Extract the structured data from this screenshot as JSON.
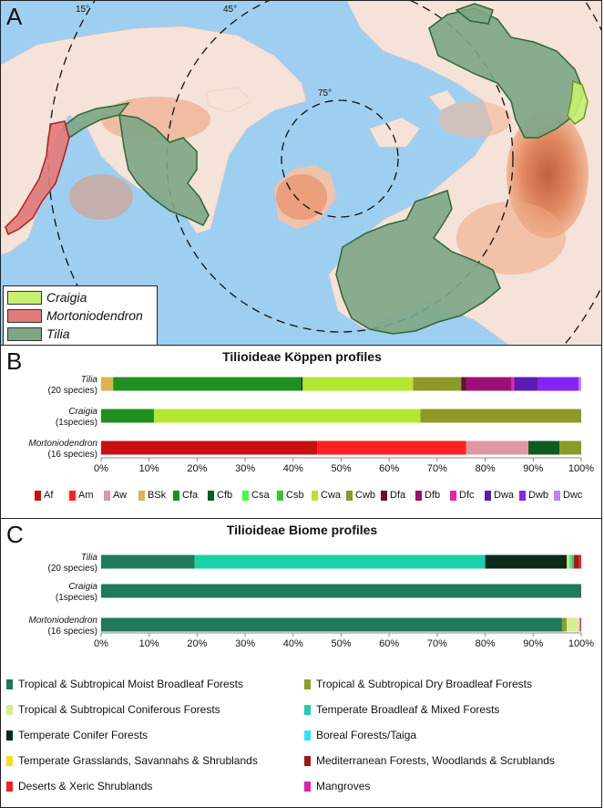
{
  "panel_a": {
    "letter": "A",
    "latitude_labels": [
      "15°",
      "45°",
      "75°"
    ],
    "legend": [
      {
        "name": "Craigia",
        "color": "#c8f06e"
      },
      {
        "name": "Mortoniodendron",
        "color": "#e47a78"
      },
      {
        "name": "Tilia",
        "color": "#7ea686"
      }
    ],
    "colors": {
      "ocean": "#9fcff0",
      "land": "#f5e2d8",
      "relief": "#d87040"
    }
  },
  "chart_data": [
    {
      "type": "bar",
      "orientation": "horizontal-stacked-100",
      "letter": "B",
      "title": "Tilioideae Köppen profiles",
      "categories": [
        {
          "name": "Tilia",
          "note": "(20 species)"
        },
        {
          "name": "Craigia",
          "note": "(1species)"
        },
        {
          "name": "Mortoniodendron",
          "note": "(16 species)"
        }
      ],
      "xlim": [
        0,
        100
      ],
      "xticks": [
        "0%",
        "10%",
        "20%",
        "30%",
        "40%",
        "50%",
        "60%",
        "70%",
        "80%",
        "90%",
        "100%"
      ],
      "legend": [
        {
          "name": "Af",
          "color": "#c81010"
        },
        {
          "name": "Am",
          "color": "#ff2020"
        },
        {
          "name": "Aw",
          "color": "#dc98a2"
        },
        {
          "name": "BSk",
          "color": "#dcb44c"
        },
        {
          "name": "Cfa",
          "color": "#1f8f1f"
        },
        {
          "name": "Cfb",
          "color": "#0e5c22"
        },
        {
          "name": "Csa",
          "color": "#40ff40"
        },
        {
          "name": "Csb",
          "color": "#30c830"
        },
        {
          "name": "Cwa",
          "color": "#b4e632"
        },
        {
          "name": "Cwb",
          "color": "#8c9a28"
        },
        {
          "name": "Dfa",
          "color": "#6c0c3c"
        },
        {
          "name": "Dfb",
          "color": "#9c1076"
        },
        {
          "name": "Dfc",
          "color": "#f020a8"
        },
        {
          "name": "Dwa",
          "color": "#5c1cb4"
        },
        {
          "name": "Dwb",
          "color": "#8424f4"
        },
        {
          "name": "Dwc",
          "color": "#c080f8"
        }
      ],
      "series": [
        {
          "category": "Tilia",
          "segments": [
            {
              "class": "BSk",
              "value": 2.5
            },
            {
              "class": "Cfa",
              "value": 39
            },
            {
              "class": "Cfb",
              "value": 0.5
            },
            {
              "class": "Cwa",
              "value": 23
            },
            {
              "class": "Cwb",
              "value": 10
            },
            {
              "class": "Dfa",
              "value": 1
            },
            {
              "class": "Dfb",
              "value": 9.5
            },
            {
              "class": "Dfc",
              "value": 0.5
            },
            {
              "class": "Dwa",
              "value": 5
            },
            {
              "class": "Dwb",
              "value": 8.5
            },
            {
              "class": "Dwc",
              "value": 0.5
            }
          ]
        },
        {
          "category": "Craigia",
          "segments": [
            {
              "class": "Cfa",
              "value": 11
            },
            {
              "class": "Cwa",
              "value": 55.5
            },
            {
              "class": "Cwb",
              "value": 33.5
            }
          ]
        },
        {
          "category": "Mortoniodendron",
          "segments": [
            {
              "class": "Af",
              "value": 45
            },
            {
              "class": "Am",
              "value": 31
            },
            {
              "class": "Aw",
              "value": 13
            },
            {
              "class": "Cfb",
              "value": 6.5
            },
            {
              "class": "Cwb",
              "value": 4.5
            }
          ]
        }
      ]
    },
    {
      "type": "bar",
      "orientation": "horizontal-stacked-100",
      "letter": "C",
      "title": "Tilioideae Biome profiles",
      "categories": [
        {
          "name": "Tilia",
          "note": "(20 species)"
        },
        {
          "name": "Craigia",
          "note": "(1species)"
        },
        {
          "name": "Mortoniodendron",
          "note": "(16 species)"
        }
      ],
      "xlim": [
        0,
        100
      ],
      "xticks": [
        "0%",
        "10%",
        "20%",
        "30%",
        "40%",
        "50%",
        "60%",
        "70%",
        "80%",
        "90%",
        "100%"
      ],
      "legend": [
        {
          "name": "Tropical & Subtropical Moist Broadleaf Forests",
          "color": "#1e7a5a"
        },
        {
          "name": "Tropical & Subtropical Dry Broadleaf Forests",
          "color": "#8ca028"
        },
        {
          "name": "Tropical & Subtropical Coniferous Forests",
          "color": "#d4f08c"
        },
        {
          "name": "Temperate Broadleaf & Mixed Forests",
          "color": "#18d2a8"
        },
        {
          "name": "Temperate Conifer Forests",
          "color": "#0c2a1c"
        },
        {
          "name": "Boreal Forests/Taiga",
          "color": "#28e8f0"
        },
        {
          "name": "Temperate Grasslands, Savannahs & Shrublands",
          "color": "#f0e020"
        },
        {
          "name": "Mediterranean Forests, Woodlands & Scrublands",
          "color": "#a01818"
        },
        {
          "name": "Deserts & Xeric Shrublands",
          "color": "#f02020"
        },
        {
          "name": "Mangroves",
          "color": "#e020b0"
        }
      ],
      "series": [
        {
          "category": "Tilia",
          "segments": [
            {
              "class": "Tropical & Subtropical Moist Broadleaf Forests",
              "value": 19.5
            },
            {
              "class": "Temperate Broadleaf & Mixed Forests",
              "value": 60.5
            },
            {
              "class": "Temperate Conifer Forests",
              "value": 17
            },
            {
              "class": "Temperate Grasslands, Savannahs & Shrublands",
              "value": 0.5
            },
            {
              "class": "Boreal Forests/Taiga",
              "value": 0.6
            },
            {
              "class": "Tropical & Subtropical Dry Broadleaf Forests",
              "value": 0.4
            },
            {
              "class": "Mediterranean Forests, Woodlands & Scrublands",
              "value": 1
            },
            {
              "class": "Deserts & Xeric Shrublands",
              "value": 0.5
            }
          ]
        },
        {
          "category": "Craigia",
          "segments": [
            {
              "class": "Tropical & Subtropical Moist Broadleaf Forests",
              "value": 100
            }
          ]
        },
        {
          "category": "Mortoniodendron",
          "segments": [
            {
              "class": "Tropical & Subtropical Moist Broadleaf Forests",
              "value": 96
            },
            {
              "class": "Tropical & Subtropical Dry Broadleaf Forests",
              "value": 1
            },
            {
              "class": "Tropical & Subtropical Coniferous Forests",
              "value": 2.7
            },
            {
              "class": "Mangroves",
              "value": 0.3
            }
          ]
        }
      ]
    }
  ]
}
